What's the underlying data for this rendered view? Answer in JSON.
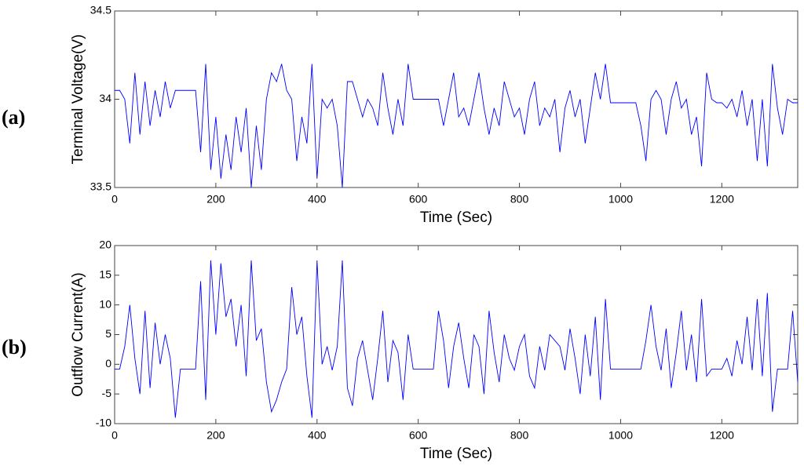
{
  "chart_data": [
    {
      "type": "line",
      "panel_label": "(a)",
      "x_label": "Time (Sec)",
      "y_label": "Terminal Voltage(V)",
      "color": "#0000ff",
      "xlim": [
        0,
        1350
      ],
      "xticks": [
        0,
        200,
        400,
        600,
        800,
        1000,
        1200
      ],
      "ylim": [
        33.5,
        34.5
      ],
      "yticks": [
        33.5,
        34,
        34.5
      ],
      "x": [
        0,
        10,
        20,
        30,
        40,
        50,
        60,
        70,
        80,
        90,
        100,
        110,
        120,
        130,
        140,
        150,
        160,
        170,
        180,
        190,
        200,
        210,
        220,
        230,
        240,
        250,
        260,
        270,
        280,
        290,
        300,
        310,
        320,
        330,
        340,
        350,
        360,
        370,
        380,
        390,
        400,
        410,
        420,
        430,
        440,
        450,
        460,
        470,
        480,
        490,
        500,
        510,
        520,
        530,
        540,
        550,
        560,
        570,
        580,
        590,
        600,
        610,
        620,
        630,
        640,
        650,
        660,
        670,
        680,
        690,
        700,
        710,
        720,
        730,
        740,
        750,
        760,
        770,
        780,
        790,
        800,
        810,
        820,
        830,
        840,
        850,
        860,
        870,
        880,
        890,
        900,
        910,
        920,
        930,
        940,
        950,
        960,
        970,
        980,
        990,
        1000,
        1010,
        1020,
        1030,
        1040,
        1050,
        1060,
        1070,
        1080,
        1090,
        1100,
        1110,
        1120,
        1130,
        1140,
        1150,
        1160,
        1170,
        1180,
        1190,
        1200,
        1210,
        1220,
        1230,
        1240,
        1250,
        1260,
        1270,
        1280,
        1290,
        1300,
        1310,
        1320,
        1330,
        1340,
        1350
      ],
      "values": [
        34.05,
        34.05,
        34.0,
        33.75,
        34.15,
        33.8,
        34.1,
        33.85,
        34.05,
        33.9,
        34.1,
        33.95,
        34.05,
        34.05,
        34.05,
        34.05,
        34.05,
        33.7,
        34.2,
        33.6,
        33.9,
        33.55,
        33.8,
        33.6,
        33.9,
        33.7,
        33.95,
        33.5,
        33.85,
        33.6,
        34.0,
        34.15,
        34.1,
        34.2,
        34.05,
        34.0,
        33.65,
        33.9,
        33.75,
        34.2,
        33.55,
        34.0,
        33.95,
        34.0,
        33.85,
        33.5,
        34.1,
        34.1,
        34.0,
        33.9,
        34.0,
        33.95,
        33.85,
        34.15,
        33.95,
        33.8,
        34.0,
        33.85,
        34.2,
        34.0,
        34.0,
        34.0,
        34.0,
        34.0,
        34.0,
        33.85,
        34.0,
        34.15,
        33.9,
        33.95,
        33.85,
        34.0,
        34.15,
        33.95,
        33.8,
        33.95,
        33.85,
        34.1,
        34.0,
        33.9,
        33.95,
        33.8,
        34.0,
        34.1,
        33.85,
        33.95,
        33.9,
        34.0,
        33.7,
        33.95,
        34.05,
        33.9,
        34.0,
        33.75,
        33.95,
        34.15,
        34.0,
        34.2,
        33.98,
        33.98,
        33.98,
        33.98,
        33.98,
        33.98,
        33.85,
        33.65,
        34.0,
        34.05,
        34.0,
        33.8,
        34.0,
        34.1,
        33.95,
        34.0,
        33.8,
        33.9,
        33.62,
        34.15,
        34.0,
        33.98,
        33.98,
        33.95,
        34.0,
        33.9,
        34.05,
        33.85,
        34.0,
        33.65,
        34.0,
        33.62,
        34.2,
        33.95,
        33.8,
        34.0,
        33.98,
        33.98
      ]
    },
    {
      "type": "line",
      "panel_label": "(b)",
      "x_label": "Time (Sec)",
      "y_label": "Outflow Current(A)",
      "color": "#0000ff",
      "xlim": [
        0,
        1350
      ],
      "xticks": [
        0,
        200,
        400,
        600,
        800,
        1000,
        1200
      ],
      "ylim": [
        -10,
        20
      ],
      "yticks": [
        -10,
        -5,
        0,
        5,
        10,
        15,
        20
      ],
      "x": [
        0,
        10,
        20,
        30,
        40,
        50,
        60,
        70,
        80,
        90,
        100,
        110,
        120,
        130,
        140,
        150,
        160,
        170,
        180,
        190,
        200,
        210,
        220,
        230,
        240,
        250,
        260,
        270,
        280,
        290,
        300,
        310,
        320,
        330,
        340,
        350,
        360,
        370,
        380,
        390,
        400,
        410,
        420,
        430,
        440,
        450,
        460,
        470,
        480,
        490,
        500,
        510,
        520,
        530,
        540,
        550,
        560,
        570,
        580,
        590,
        600,
        610,
        620,
        630,
        640,
        650,
        660,
        670,
        680,
        690,
        700,
        710,
        720,
        730,
        740,
        750,
        760,
        770,
        780,
        790,
        800,
        810,
        820,
        830,
        840,
        850,
        860,
        870,
        880,
        890,
        900,
        910,
        920,
        930,
        940,
        950,
        960,
        970,
        980,
        990,
        1000,
        1010,
        1020,
        1030,
        1040,
        1050,
        1060,
        1070,
        1080,
        1090,
        1100,
        1110,
        1120,
        1130,
        1140,
        1150,
        1160,
        1170,
        1180,
        1190,
        1200,
        1210,
        1220,
        1230,
        1240,
        1250,
        1260,
        1270,
        1280,
        1290,
        1300,
        1310,
        1320,
        1330,
        1340,
        1350
      ],
      "values": [
        -0.8,
        -0.8,
        3,
        10,
        1,
        -5,
        9,
        -4,
        7,
        0,
        5,
        1,
        -9,
        -0.8,
        -0.8,
        -0.8,
        -0.8,
        14,
        -6,
        17.5,
        5,
        17,
        8,
        11,
        3,
        10,
        -2,
        17.5,
        4,
        6,
        -3,
        -8,
        -6,
        -3,
        -0.8,
        13,
        5,
        8,
        -2,
        -9,
        17.5,
        0,
        3,
        -1,
        3,
        17.5,
        -4,
        -7,
        1,
        4,
        -1,
        -6,
        1,
        9,
        -3,
        4,
        2,
        -6,
        5,
        -0.8,
        -0.8,
        -0.8,
        -0.8,
        -0.8,
        9,
        4,
        -4,
        3,
        7,
        1,
        -4,
        5,
        3,
        -5,
        9,
        2,
        -3,
        5,
        1,
        -1,
        3,
        5,
        -2,
        -4,
        3,
        -1,
        5,
        4,
        3,
        -1,
        6,
        1,
        -5,
        5,
        -2,
        8,
        -6,
        11,
        -0.8,
        -0.8,
        -0.8,
        -0.8,
        -0.8,
        -0.8,
        -0.8,
        4,
        10,
        3,
        -1,
        6,
        -4,
        2,
        9,
        -1,
        5,
        -3,
        11,
        -2,
        -0.8,
        -0.8,
        -0.8,
        1,
        -2,
        4,
        0,
        8,
        -1,
        11,
        -2,
        12,
        -8,
        -0.8,
        -0.8,
        -0.8,
        9,
        -3
      ]
    }
  ]
}
